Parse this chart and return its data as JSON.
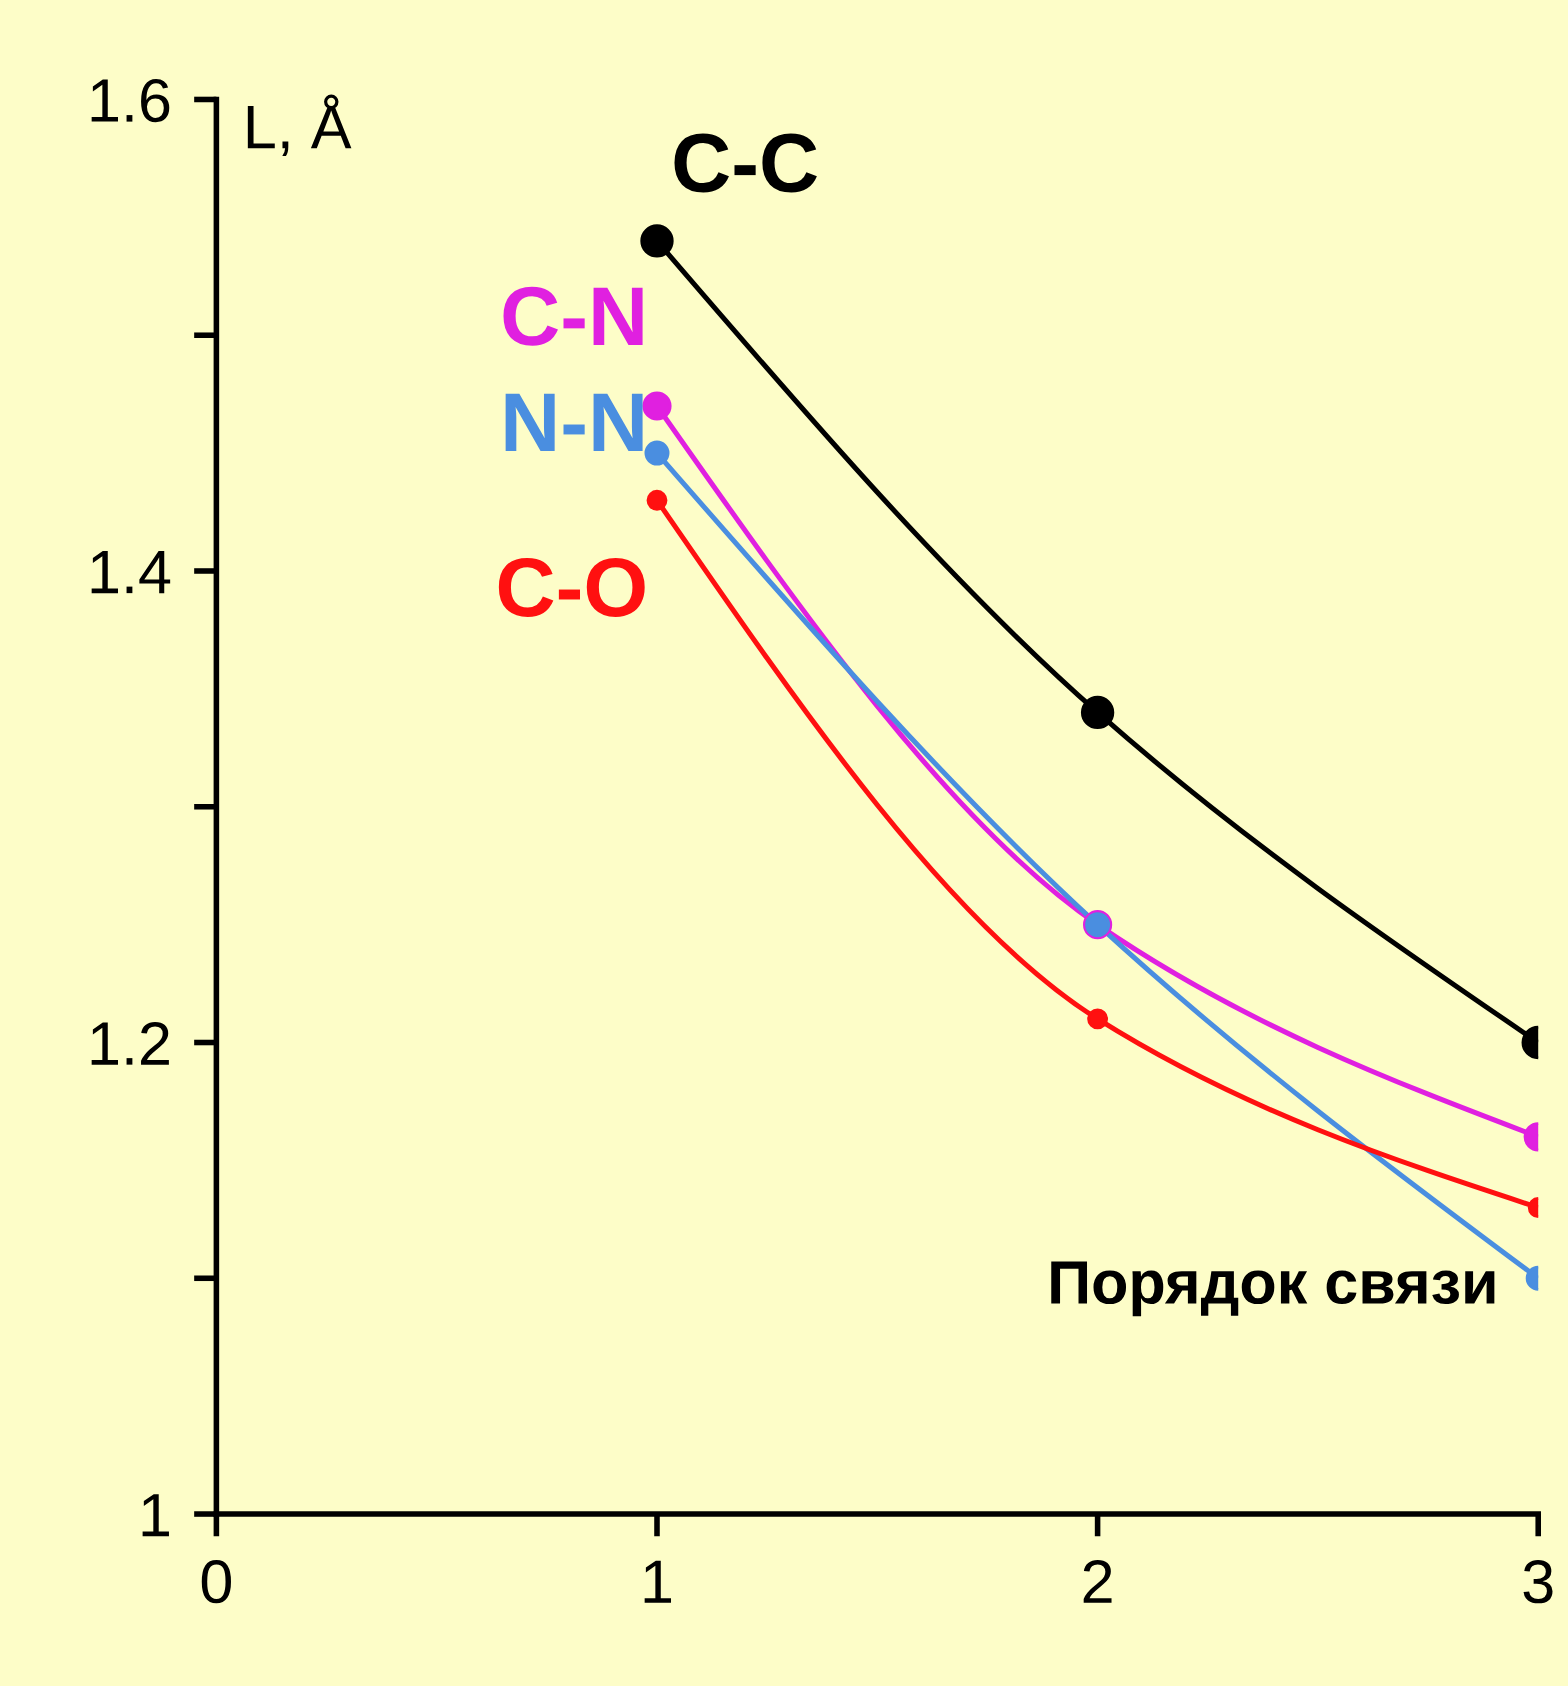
{
  "chart_data": {
    "type": "line",
    "ylabel": "L, Å",
    "xlabel": "Порядок связи",
    "x": [
      1,
      2,
      3
    ],
    "series": [
      {
        "name": "C-C",
        "color": "#000000",
        "values": [
          1.54,
          1.34,
          1.2
        ]
      },
      {
        "name": "C-N",
        "color": "#e020e0",
        "values": [
          1.47,
          1.25,
          1.16
        ]
      },
      {
        "name": "N-N",
        "color": "#4a8ee0",
        "values": [
          1.45,
          1.25,
          1.1
        ]
      },
      {
        "name": "C-O",
        "color": "#ff1010",
        "values": [
          1.43,
          1.21,
          1.13
        ]
      }
    ],
    "xlim": [
      0,
      3
    ],
    "ylim": [
      1,
      1.6
    ],
    "xticks": [
      0,
      1,
      2,
      3
    ],
    "yticks": [
      1,
      {
        "value": 1.1,
        "label": null
      },
      1.2,
      {
        "value": 1.3,
        "label": null
      },
      1.4,
      {
        "value": 1.5,
        "label": null
      },
      1.6
    ],
    "grid": false,
    "legend": false,
    "marker": "circle",
    "line_style": "solid"
  }
}
